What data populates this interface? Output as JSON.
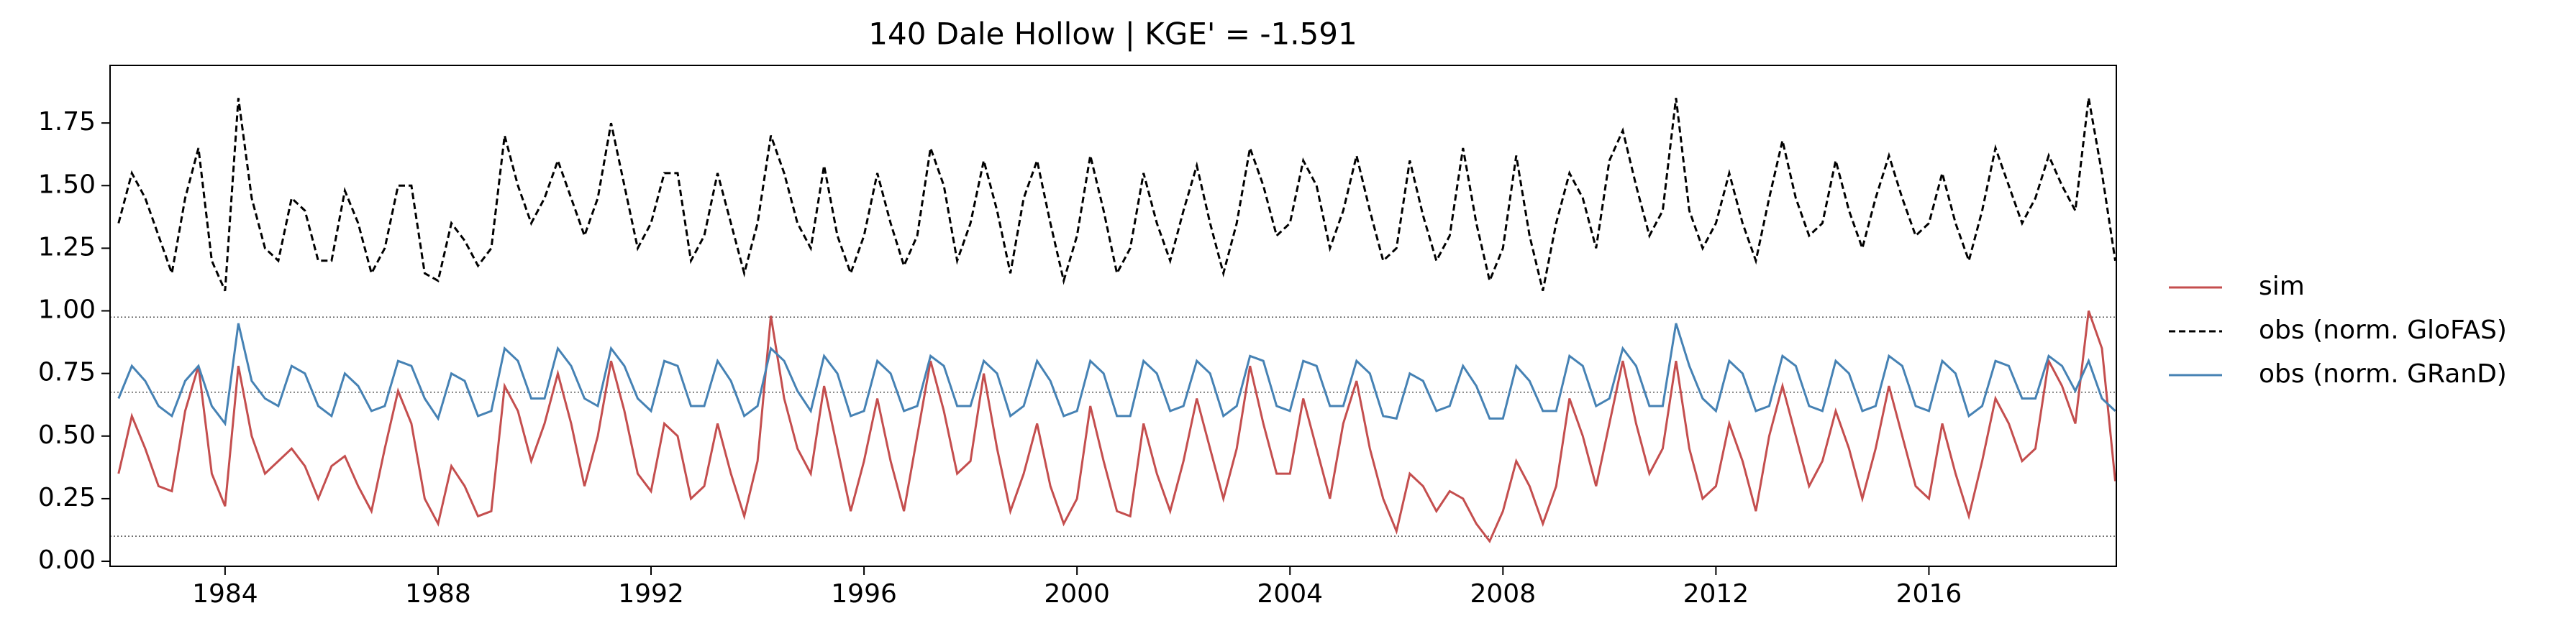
{
  "chart_data": {
    "type": "line",
    "title": "140  Dale Hollow | KGE' = -1.591",
    "x": [
      1982.0,
      1982.25,
      1982.5,
      1982.75,
      1983.0,
      1983.25,
      1983.5,
      1983.75,
      1984.0,
      1984.25,
      1984.5,
      1984.75,
      1985.0,
      1985.25,
      1985.5,
      1985.75,
      1986.0,
      1986.25,
      1986.5,
      1986.75,
      1987.0,
      1987.25,
      1987.5,
      1987.75,
      1988.0,
      1988.25,
      1988.5,
      1988.75,
      1989.0,
      1989.25,
      1989.5,
      1989.75,
      1990.0,
      1990.25,
      1990.5,
      1990.75,
      1991.0,
      1991.25,
      1991.5,
      1991.75,
      1992.0,
      1992.25,
      1992.5,
      1992.75,
      1993.0,
      1993.25,
      1993.5,
      1993.75,
      1994.0,
      1994.25,
      1994.5,
      1994.75,
      1995.0,
      1995.25,
      1995.5,
      1995.75,
      1996.0,
      1996.25,
      1996.5,
      1996.75,
      1997.0,
      1997.25,
      1997.5,
      1997.75,
      1998.0,
      1998.25,
      1998.5,
      1998.75,
      1999.0,
      1999.25,
      1999.5,
      1999.75,
      2000.0,
      2000.25,
      2000.5,
      2000.75,
      2001.0,
      2001.25,
      2001.5,
      2001.75,
      2002.0,
      2002.25,
      2002.5,
      2002.75,
      2003.0,
      2003.25,
      2003.5,
      2003.75,
      2004.0,
      2004.25,
      2004.5,
      2004.75,
      2005.0,
      2005.25,
      2005.5,
      2005.75,
      2006.0,
      2006.25,
      2006.5,
      2006.75,
      2007.0,
      2007.25,
      2007.5,
      2007.75,
      2008.0,
      2008.25,
      2008.5,
      2008.75,
      2009.0,
      2009.25,
      2009.5,
      2009.75,
      2010.0,
      2010.25,
      2010.5,
      2010.75,
      2011.0,
      2011.25,
      2011.5,
      2011.75,
      2012.0,
      2012.25,
      2012.5,
      2012.75,
      2013.0,
      2013.25,
      2013.5,
      2013.75,
      2014.0,
      2014.25,
      2014.5,
      2014.75,
      2015.0,
      2015.25,
      2015.5,
      2015.75,
      2016.0,
      2016.25,
      2016.5,
      2016.75,
      2017.0,
      2017.25,
      2017.5,
      2017.75,
      2018.0,
      2018.25,
      2018.5,
      2018.75,
      2019.0,
      2019.25,
      2019.5
    ],
    "series": [
      {
        "name": "sim",
        "color": "#c44e4e",
        "linestyle": "solid",
        "values": [
          0.35,
          0.58,
          0.45,
          0.3,
          0.28,
          0.6,
          0.78,
          0.35,
          0.22,
          0.78,
          0.5,
          0.35,
          0.4,
          0.45,
          0.38,
          0.25,
          0.38,
          0.42,
          0.3,
          0.2,
          0.45,
          0.68,
          0.55,
          0.25,
          0.15,
          0.38,
          0.3,
          0.18,
          0.2,
          0.7,
          0.6,
          0.4,
          0.55,
          0.75,
          0.55,
          0.3,
          0.5,
          0.8,
          0.6,
          0.35,
          0.28,
          0.55,
          0.5,
          0.25,
          0.3,
          0.55,
          0.35,
          0.18,
          0.4,
          0.98,
          0.65,
          0.45,
          0.35,
          0.7,
          0.45,
          0.2,
          0.4,
          0.65,
          0.4,
          0.2,
          0.5,
          0.8,
          0.6,
          0.35,
          0.4,
          0.75,
          0.45,
          0.2,
          0.35,
          0.55,
          0.3,
          0.15,
          0.25,
          0.62,
          0.4,
          0.2,
          0.18,
          0.55,
          0.35,
          0.2,
          0.4,
          0.65,
          0.45,
          0.25,
          0.45,
          0.78,
          0.55,
          0.35,
          0.35,
          0.65,
          0.45,
          0.25,
          0.55,
          0.72,
          0.45,
          0.25,
          0.12,
          0.35,
          0.3,
          0.2,
          0.28,
          0.25,
          0.15,
          0.08,
          0.2,
          0.4,
          0.3,
          0.15,
          0.3,
          0.65,
          0.5,
          0.3,
          0.55,
          0.8,
          0.55,
          0.35,
          0.45,
          0.8,
          0.45,
          0.25,
          0.3,
          0.55,
          0.4,
          0.2,
          0.5,
          0.7,
          0.5,
          0.3,
          0.4,
          0.6,
          0.45,
          0.25,
          0.45,
          0.7,
          0.5,
          0.3,
          0.25,
          0.55,
          0.35,
          0.18,
          0.4,
          0.65,
          0.55,
          0.4,
          0.45,
          0.8,
          0.7,
          0.55,
          1.0,
          0.85,
          0.32
        ]
      },
      {
        "name": "obs (norm. GloFAS)",
        "color": "#000000",
        "linestyle": "dashed",
        "values": [
          1.35,
          1.55,
          1.45,
          1.3,
          1.15,
          1.45,
          1.65,
          1.2,
          1.08,
          1.85,
          1.45,
          1.25,
          1.2,
          1.45,
          1.4,
          1.2,
          1.2,
          1.48,
          1.35,
          1.15,
          1.25,
          1.5,
          1.5,
          1.15,
          1.12,
          1.35,
          1.28,
          1.18,
          1.25,
          1.7,
          1.5,
          1.35,
          1.45,
          1.6,
          1.45,
          1.3,
          1.45,
          1.75,
          1.5,
          1.25,
          1.35,
          1.55,
          1.55,
          1.2,
          1.3,
          1.55,
          1.35,
          1.15,
          1.35,
          1.7,
          1.55,
          1.35,
          1.25,
          1.58,
          1.3,
          1.15,
          1.3,
          1.55,
          1.35,
          1.18,
          1.3,
          1.65,
          1.5,
          1.2,
          1.35,
          1.6,
          1.4,
          1.15,
          1.45,
          1.6,
          1.35,
          1.12,
          1.3,
          1.62,
          1.4,
          1.15,
          1.25,
          1.55,
          1.35,
          1.2,
          1.4,
          1.58,
          1.35,
          1.15,
          1.35,
          1.65,
          1.5,
          1.3,
          1.35,
          1.6,
          1.5,
          1.25,
          1.4,
          1.62,
          1.4,
          1.2,
          1.25,
          1.6,
          1.38,
          1.2,
          1.3,
          1.65,
          1.35,
          1.12,
          1.25,
          1.62,
          1.3,
          1.08,
          1.35,
          1.55,
          1.45,
          1.25,
          1.6,
          1.72,
          1.5,
          1.3,
          1.4,
          1.85,
          1.4,
          1.25,
          1.35,
          1.55,
          1.35,
          1.2,
          1.45,
          1.68,
          1.45,
          1.3,
          1.35,
          1.6,
          1.4,
          1.25,
          1.45,
          1.62,
          1.45,
          1.3,
          1.35,
          1.55,
          1.35,
          1.2,
          1.4,
          1.65,
          1.5,
          1.35,
          1.45,
          1.62,
          1.5,
          1.4,
          1.85,
          1.55,
          1.2
        ]
      },
      {
        "name": "obs (norm. GRanD)",
        "color": "#4682b4",
        "linestyle": "solid",
        "values": [
          0.65,
          0.78,
          0.72,
          0.62,
          0.58,
          0.72,
          0.78,
          0.62,
          0.55,
          0.95,
          0.72,
          0.65,
          0.62,
          0.78,
          0.75,
          0.62,
          0.58,
          0.75,
          0.7,
          0.6,
          0.62,
          0.8,
          0.78,
          0.65,
          0.57,
          0.75,
          0.72,
          0.58,
          0.6,
          0.85,
          0.8,
          0.65,
          0.65,
          0.85,
          0.78,
          0.65,
          0.62,
          0.85,
          0.78,
          0.65,
          0.6,
          0.8,
          0.78,
          0.62,
          0.62,
          0.8,
          0.72,
          0.58,
          0.62,
          0.85,
          0.8,
          0.68,
          0.6,
          0.82,
          0.75,
          0.58,
          0.6,
          0.8,
          0.75,
          0.6,
          0.62,
          0.82,
          0.78,
          0.62,
          0.62,
          0.8,
          0.75,
          0.58,
          0.62,
          0.8,
          0.72,
          0.58,
          0.6,
          0.8,
          0.75,
          0.58,
          0.58,
          0.8,
          0.75,
          0.6,
          0.62,
          0.8,
          0.75,
          0.58,
          0.62,
          0.82,
          0.8,
          0.62,
          0.6,
          0.8,
          0.78,
          0.62,
          0.62,
          0.8,
          0.75,
          0.58,
          0.57,
          0.75,
          0.72,
          0.6,
          0.62,
          0.78,
          0.7,
          0.57,
          0.57,
          0.78,
          0.72,
          0.6,
          0.6,
          0.82,
          0.78,
          0.62,
          0.65,
          0.85,
          0.78,
          0.62,
          0.62,
          0.95,
          0.78,
          0.65,
          0.6,
          0.8,
          0.75,
          0.6,
          0.62,
          0.82,
          0.78,
          0.62,
          0.6,
          0.8,
          0.75,
          0.6,
          0.62,
          0.82,
          0.78,
          0.62,
          0.6,
          0.8,
          0.75,
          0.58,
          0.62,
          0.8,
          0.78,
          0.65,
          0.65,
          0.82,
          0.78,
          0.68,
          0.8,
          0.65,
          0.6
        ]
      }
    ],
    "reference_lines": [
      0.975,
      0.675,
      0.1
    ],
    "reference_color": "#555555",
    "xlim": [
      1981.84,
      2019.52
    ],
    "xticks": [
      1984,
      1988,
      1992,
      1996,
      2000,
      2004,
      2008,
      2012,
      2016
    ],
    "ylim": [
      -0.02,
      1.98
    ],
    "yticks": [
      {
        "value": 0,
        "label": "0.00"
      },
      {
        "value": 0.25,
        "label": "0.25"
      },
      {
        "value": 0.5,
        "label": "0.50"
      },
      {
        "value": 0.75,
        "label": "0.75"
      },
      {
        "value": 1,
        "label": "1.00"
      },
      {
        "value": 1.25,
        "label": "1.25"
      },
      {
        "value": 1.5,
        "label": "1.50"
      },
      {
        "value": 1.75,
        "label": "1.75"
      }
    ],
    "grid": false,
    "legend": "outside right"
  }
}
